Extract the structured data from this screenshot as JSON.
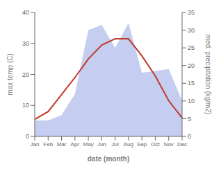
{
  "chart_data": {
    "type": "line",
    "categories": [
      "Jan",
      "Feb",
      "Mar",
      "Apr",
      "May",
      "Jun",
      "Jul",
      "Aug",
      "Sep",
      "Oct",
      "Nov",
      "Dec"
    ],
    "series": [
      {
        "type": "area",
        "color": "#c5cef0",
        "axis": "y2",
        "values": [
          4.5,
          4.5,
          6.0,
          12.0,
          30.0,
          31.5,
          25.0,
          32.0,
          18.0,
          18.5,
          19.0,
          10.0
        ]
      },
      {
        "type": "line",
        "color": "#c0392b",
        "values": [
          5.5,
          8.0,
          13.5,
          19.0,
          25.0,
          29.5,
          31.5,
          31.5,
          26.0,
          19.5,
          11.5,
          6.0
        ]
      }
    ],
    "xlabel": "date (month)",
    "ylabel": "max temp (C)",
    "y2label": "med. precipitation (kg/m2)",
    "ylim": [
      0,
      40
    ],
    "yticks": [
      0,
      10,
      20,
      30,
      40
    ],
    "y2lim": [
      0,
      35
    ],
    "y2ticks": [
      0,
      5,
      10,
      15,
      20,
      25,
      30,
      35
    ],
    "grid": false
  }
}
